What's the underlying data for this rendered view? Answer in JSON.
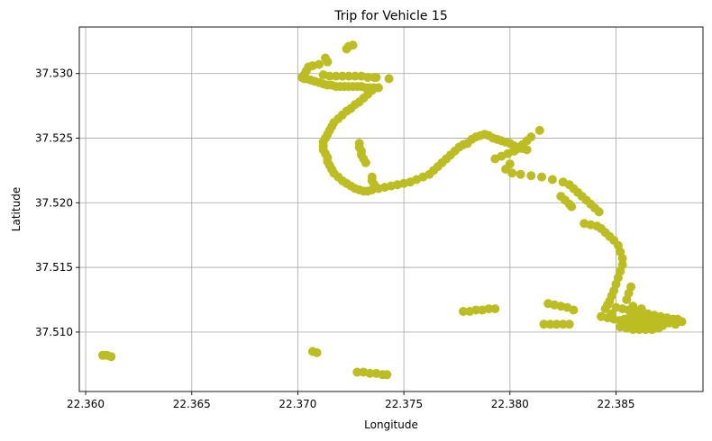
{
  "chart_data": {
    "type": "scatter",
    "title": "Trip for Vehicle 15",
    "xlabel": "Longitude",
    "ylabel": "Latitude",
    "xlim": [
      22.3597,
      22.3891
    ],
    "ylim": [
      37.5054,
      37.5336
    ],
    "xticks": [
      22.36,
      22.365,
      22.37,
      22.375,
      22.38,
      22.385
    ],
    "xtick_labels": [
      "22.360",
      "22.365",
      "22.370",
      "22.375",
      "22.380",
      "22.385"
    ],
    "yticks": [
      37.51,
      37.515,
      37.52,
      37.525,
      37.53
    ],
    "ytick_labels": [
      "37.510",
      "37.515",
      "37.520",
      "37.525",
      "37.530"
    ],
    "grid": true,
    "marker_color": "#bcbd22",
    "series": [
      {
        "points": [
          [
            22.3724,
            37.5321
          ],
          [
            22.3726,
            37.5322
          ],
          [
            22.3723,
            37.5319
          ],
          [
            22.3713,
            37.5312
          ],
          [
            22.3714,
            37.5309
          ],
          [
            22.371,
            37.5307
          ],
          [
            22.3707,
            37.5306
          ],
          [
            22.3705,
            37.5305
          ],
          [
            22.3704,
            37.5302
          ],
          [
            22.3703,
            37.5299
          ],
          [
            22.3702,
            37.5297
          ],
          [
            22.3703,
            37.5296
          ],
          [
            22.3704,
            37.5296
          ],
          [
            22.3706,
            37.5295
          ],
          [
            22.3708,
            37.5294
          ],
          [
            22.371,
            37.5293
          ],
          [
            22.3712,
            37.5292
          ],
          [
            22.3714,
            37.5291
          ],
          [
            22.3716,
            37.5291
          ],
          [
            22.3718,
            37.529
          ],
          [
            22.372,
            37.529
          ],
          [
            22.3722,
            37.529
          ],
          [
            22.3724,
            37.529
          ],
          [
            22.3726,
            37.529
          ],
          [
            22.3728,
            37.529
          ],
          [
            22.373,
            37.529
          ],
          [
            22.3732,
            37.5289
          ],
          [
            22.3734,
            37.5289
          ],
          [
            22.3736,
            37.5289
          ],
          [
            22.3738,
            37.5289
          ],
          [
            22.3712,
            37.5299
          ],
          [
            22.3715,
            37.5298
          ],
          [
            22.3718,
            37.5298
          ],
          [
            22.3721,
            37.5298
          ],
          [
            22.3724,
            37.5298
          ],
          [
            22.3727,
            37.5298
          ],
          [
            22.373,
            37.5298
          ],
          [
            22.3733,
            37.5297
          ],
          [
            22.3736,
            37.5297
          ],
          [
            22.3737,
            37.5297
          ],
          [
            22.3743,
            37.5296
          ],
          [
            22.3735,
            37.5287
          ],
          [
            22.3733,
            37.5284
          ],
          [
            22.3731,
            37.5281
          ],
          [
            22.3729,
            37.5278
          ],
          [
            22.3727,
            37.5276
          ],
          [
            22.3725,
            37.5273
          ],
          [
            22.3723,
            37.5271
          ],
          [
            22.3721,
            37.5268
          ],
          [
            22.3719,
            37.5265
          ],
          [
            22.3717,
            37.5262
          ],
          [
            22.3716,
            37.5259
          ],
          [
            22.3715,
            37.5256
          ],
          [
            22.3714,
            37.5253
          ],
          [
            22.3713,
            37.525
          ],
          [
            22.3712,
            37.5247
          ],
          [
            22.3712,
            37.5244
          ],
          [
            22.3712,
            37.5241
          ],
          [
            22.3713,
            37.5238
          ],
          [
            22.3714,
            37.5235
          ],
          [
            22.3714,
            37.5232
          ],
          [
            22.3715,
            37.5229
          ],
          [
            22.3716,
            37.5226
          ],
          [
            22.3717,
            37.5223
          ],
          [
            22.3719,
            37.522
          ],
          [
            22.3721,
            37.5217
          ],
          [
            22.3723,
            37.5215
          ],
          [
            22.3725,
            37.5213
          ],
          [
            22.3727,
            37.5211
          ],
          [
            22.3729,
            37.521
          ],
          [
            22.3731,
            37.5209
          ],
          [
            22.3733,
            37.5209
          ],
          [
            22.3729,
            37.5246
          ],
          [
            22.3729,
            37.5243
          ],
          [
            22.373,
            37.524
          ],
          [
            22.373,
            37.5237
          ],
          [
            22.3731,
            37.5234
          ],
          [
            22.3732,
            37.5231
          ],
          [
            22.3735,
            37.522
          ],
          [
            22.3735,
            37.5217
          ],
          [
            22.3736,
            37.5214
          ],
          [
            22.3735,
            37.521
          ],
          [
            22.3738,
            37.5211
          ],
          [
            22.3741,
            37.5212
          ],
          [
            22.3744,
            37.5213
          ],
          [
            22.3747,
            37.5214
          ],
          [
            22.375,
            37.5215
          ],
          [
            22.3753,
            37.5216
          ],
          [
            22.3756,
            37.5218
          ],
          [
            22.3759,
            37.522
          ],
          [
            22.3762,
            37.5222
          ],
          [
            22.3764,
            37.5225
          ],
          [
            22.3766,
            37.5228
          ],
          [
            22.3768,
            37.5231
          ],
          [
            22.377,
            37.5234
          ],
          [
            22.3772,
            37.5237
          ],
          [
            22.3774,
            37.524
          ],
          [
            22.3776,
            37.5243
          ],
          [
            22.3778,
            37.5245
          ],
          [
            22.378,
            37.5246
          ],
          [
            22.3782,
            37.5249
          ],
          [
            22.3784,
            37.5251
          ],
          [
            22.3786,
            37.5252
          ],
          [
            22.3788,
            37.5253
          ],
          [
            22.379,
            37.5252
          ],
          [
            22.3792,
            37.525
          ],
          [
            22.3794,
            37.5249
          ],
          [
            22.3796,
            37.5248
          ],
          [
            22.3798,
            37.5247
          ],
          [
            22.38,
            37.5246
          ],
          [
            22.3802,
            37.5244
          ],
          [
            22.3804,
            37.5243
          ],
          [
            22.3806,
            37.5242
          ],
          [
            22.3808,
            37.5241
          ],
          [
            22.3793,
            37.5234
          ],
          [
            22.3796,
            37.5236
          ],
          [
            22.3799,
            37.5238
          ],
          [
            22.3802,
            37.524
          ],
          [
            22.3804,
            37.5242
          ],
          [
            22.3806,
            37.5245
          ],
          [
            22.3808,
            37.5248
          ],
          [
            22.381,
            37.5251
          ],
          [
            22.38,
            37.523
          ],
          [
            22.3798,
            37.5226
          ],
          [
            22.3801,
            37.5223
          ],
          [
            22.3805,
            37.5222
          ],
          [
            22.381,
            37.5221
          ],
          [
            22.3815,
            37.522
          ],
          [
            22.382,
            37.5218
          ],
          [
            22.3825,
            37.5216
          ],
          [
            22.3828,
            37.5214
          ],
          [
            22.383,
            37.5211
          ],
          [
            22.3832,
            37.5208
          ],
          [
            22.3834,
            37.5205
          ],
          [
            22.3836,
            37.5202
          ],
          [
            22.3838,
            37.5199
          ],
          [
            22.384,
            37.5196
          ],
          [
            22.3842,
            37.5193
          ],
          [
            22.3824,
            37.5205
          ],
          [
            22.3826,
            37.5202
          ],
          [
            22.3828,
            37.5199
          ],
          [
            22.3829,
            37.5197
          ],
          [
            22.3814,
            37.5256
          ],
          [
            22.3835,
            37.5184
          ],
          [
            22.3838,
            37.5183
          ],
          [
            22.3841,
            37.5182
          ],
          [
            22.3843,
            37.518
          ],
          [
            22.3845,
            37.5177
          ],
          [
            22.3847,
            37.5174
          ],
          [
            22.3849,
            37.5171
          ],
          [
            22.3851,
            37.5167
          ],
          [
            22.3852,
            37.5162
          ],
          [
            22.3853,
            37.5157
          ],
          [
            22.3853,
            37.5152
          ],
          [
            22.3852,
            37.5147
          ],
          [
            22.3851,
            37.5142
          ],
          [
            22.385,
            37.5137
          ],
          [
            22.3849,
            37.5132
          ],
          [
            22.3848,
            37.5128
          ],
          [
            22.3847,
            37.5124
          ],
          [
            22.3846,
            37.5121
          ],
          [
            22.3845,
            37.5118
          ],
          [
            22.3857,
            37.5135
          ],
          [
            22.3856,
            37.513
          ],
          [
            22.3855,
            37.5125
          ],
          [
            22.3778,
            37.5116
          ],
          [
            22.3781,
            37.5116
          ],
          [
            22.3784,
            37.5117
          ],
          [
            22.3787,
            37.5117
          ],
          [
            22.379,
            37.5118
          ],
          [
            22.3793,
            37.5118
          ],
          [
            22.3818,
            37.5122
          ],
          [
            22.3821,
            37.5121
          ],
          [
            22.3824,
            37.512
          ],
          [
            22.3827,
            37.5119
          ],
          [
            22.383,
            37.5117
          ],
          [
            22.3816,
            37.5106
          ],
          [
            22.3819,
            37.5106
          ],
          [
            22.3822,
            37.5106
          ],
          [
            22.3825,
            37.5106
          ],
          [
            22.3828,
            37.5106
          ],
          [
            22.3843,
            37.5112
          ],
          [
            22.3846,
            37.5111
          ],
          [
            22.3849,
            37.511
          ],
          [
            22.3852,
            37.5109
          ],
          [
            22.3855,
            37.5108
          ],
          [
            22.3858,
            37.5107
          ],
          [
            22.3861,
            37.5106
          ],
          [
            22.3864,
            37.5106
          ],
          [
            22.3867,
            37.5106
          ],
          [
            22.387,
            37.5107
          ],
          [
            22.3873,
            37.5108
          ],
          [
            22.3876,
            37.5109
          ],
          [
            22.3879,
            37.511
          ],
          [
            22.385,
            37.5119
          ],
          [
            22.3853,
            37.5118
          ],
          [
            22.3856,
            37.5117
          ],
          [
            22.3859,
            37.5116
          ],
          [
            22.3862,
            37.5115
          ],
          [
            22.3865,
            37.5114
          ],
          [
            22.3868,
            37.5113
          ],
          [
            22.3871,
            37.5112
          ],
          [
            22.3874,
            37.5111
          ],
          [
            22.3877,
            37.511
          ],
          [
            22.3852,
            37.5104
          ],
          [
            22.3855,
            37.5103
          ],
          [
            22.3858,
            37.5102
          ],
          [
            22.3861,
            37.5102
          ],
          [
            22.3864,
            37.5102
          ],
          [
            22.3867,
            37.5102
          ],
          [
            22.387,
            37.5103
          ],
          [
            22.386,
            37.5112
          ],
          [
            22.3863,
            37.511
          ],
          [
            22.3866,
            37.5109
          ],
          [
            22.3869,
            37.5108
          ],
          [
            22.3857,
            37.5113
          ],
          [
            22.386,
            37.5108
          ],
          [
            22.3854,
            37.511
          ],
          [
            22.3848,
            37.5114
          ],
          [
            22.3862,
            37.5118
          ],
          [
            22.3858,
            37.512
          ],
          [
            22.3872,
            37.5105
          ],
          [
            22.3875,
            37.5107
          ],
          [
            22.3878,
            37.5106
          ],
          [
            22.3881,
            37.5108
          ],
          [
            22.3608,
            37.5082
          ],
          [
            22.361,
            37.5082
          ],
          [
            22.3612,
            37.5081
          ],
          [
            22.3707,
            37.5085
          ],
          [
            22.3709,
            37.5084
          ],
          [
            22.3728,
            37.5069
          ],
          [
            22.3731,
            37.5069
          ],
          [
            22.3734,
            37.5068
          ],
          [
            22.3737,
            37.5068
          ],
          [
            22.374,
            37.5067
          ],
          [
            22.3742,
            37.5067
          ]
        ]
      }
    ]
  }
}
